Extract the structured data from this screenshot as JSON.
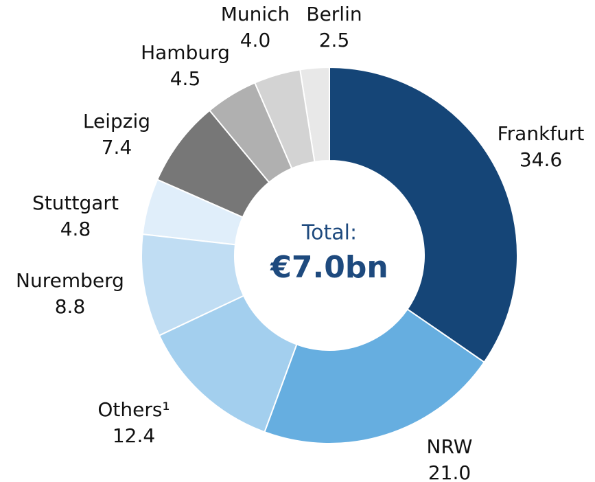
{
  "chart_data": {
    "type": "pie",
    "center_title": "Total:",
    "center_value": "€7.0bn",
    "categories": [
      "Frankfurt",
      "NRW",
      "Others¹",
      "Nuremberg",
      "Stuttgart",
      "Leipzig",
      "Hamburg",
      "Munich",
      "Berlin"
    ],
    "values": [
      34.6,
      21.0,
      12.4,
      8.8,
      4.8,
      7.4,
      4.5,
      4.0,
      2.5
    ],
    "value_labels": [
      "34.6",
      "21.0",
      "12.4",
      "8.8",
      "4.8",
      "7.4",
      "4.5",
      "4.0",
      "2.5"
    ],
    "colors": [
      "#154577",
      "#66aee0",
      "#a3cfee",
      "#c0ddf3",
      "#e0eefa",
      "#777777",
      "#b0b0b0",
      "#d3d3d3",
      "#e8e8e8"
    ]
  }
}
